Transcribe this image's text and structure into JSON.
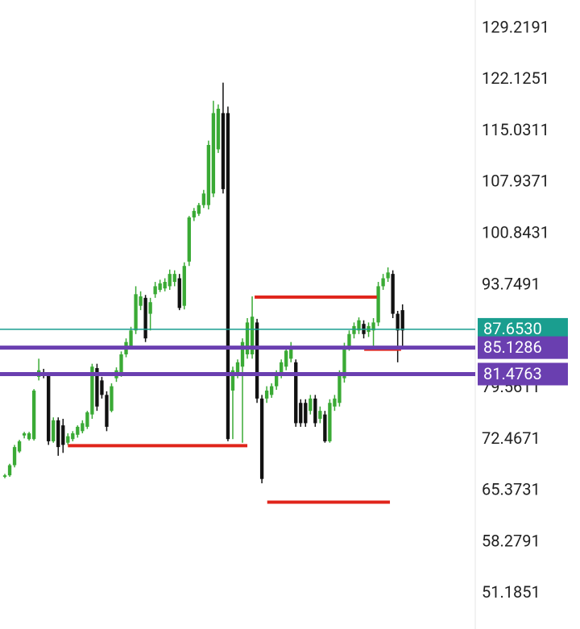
{
  "chart_data": {
    "type": "candlestick",
    "open": [
      67.3,
      67.5,
      68.9,
      70.8,
      73.0,
      72.5,
      72.5,
      81.1,
      81.7,
      81.4,
      72.2,
      75.1,
      74.4,
      72.0,
      72.5,
      73.1,
      73.6,
      74.2,
      75.9,
      82.3,
      80.6,
      78.6,
      76.4,
      80.9,
      81.4,
      84.2,
      85.3,
      87.5,
      90.9,
      92.0,
      89.8,
      92.5,
      93.1,
      93.3,
      93.6,
      94.2,
      94.7,
      90.9,
      97.0,
      103.1,
      103.6,
      104.8,
      104.8,
      106.4,
      112.5,
      117.5,
      117.5,
      79.2,
      81.4,
      82.5,
      84.2,
      84.2,
      88.6,
      78.1,
      78.1,
      78.6,
      79.8,
      81.4,
      82.5,
      83.6,
      83.1,
      77.5,
      77.5,
      76.4,
      78.1,
      75.3,
      75.9,
      72.2,
      77.0,
      77.5,
      80.9,
      85.3,
      87.0,
      87.5,
      88.4,
      87.3,
      87.5,
      88.6,
      93.6,
      94.7,
      95.3,
      89.8,
      90.3
    ],
    "high": [
      67.7,
      69.1,
      71.7,
      72.4,
      73.5,
      73.5,
      79.4,
      83.6,
      82.2,
      81.7,
      75.5,
      75.5,
      75.3,
      73.3,
      73.6,
      74.4,
      75.1,
      76.4,
      82.9,
      82.9,
      81.1,
      79.1,
      80.2,
      82.4,
      84.6,
      86.4,
      88.0,
      93.6,
      92.9,
      92.4,
      92.0,
      94.2,
      94.5,
      94.7,
      95.9,
      95.8,
      95.3,
      96.9,
      103.3,
      104.4,
      105.1,
      106.9,
      113.7,
      119.2,
      118.7,
      121.7,
      118.4,
      82.5,
      83.5,
      86.4,
      89.2,
      92.2,
      89.1,
      78.6,
      79.8,
      80.2,
      82.0,
      83.5,
      85.3,
      85.9,
      83.5,
      78.0,
      78.0,
      78.6,
      78.6,
      77.0,
      76.4,
      78.0,
      78.6,
      82.0,
      85.8,
      87.5,
      88.6,
      89.3,
      88.9,
      88.6,
      89.2,
      94.2,
      95.3,
      96.2,
      95.8,
      90.2,
      91.1
    ],
    "low": [
      67.1,
      67.3,
      68.6,
      70.6,
      72.6,
      72.3,
      72.3,
      80.6,
      80.9,
      71.7,
      72.0,
      70.2,
      70.6,
      71.7,
      72.2,
      72.7,
      73.3,
      73.9,
      75.3,
      76.4,
      78.1,
      73.6,
      76.2,
      80.4,
      81.1,
      83.8,
      84.9,
      87.0,
      90.3,
      85.9,
      87.5,
      92.0,
      92.8,
      92.9,
      93.1,
      93.6,
      90.3,
      90.4,
      96.4,
      102.6,
      103.3,
      104.4,
      104.2,
      105.9,
      112.0,
      106.4,
      72.2,
      72.5,
      80.9,
      72.0,
      83.6,
      83.6,
      77.5,
      66.4,
      77.5,
      78.2,
      79.3,
      80.9,
      82.0,
      83.1,
      74.2,
      74.2,
      74.2,
      75.9,
      74.2,
      74.7,
      72.0,
      72.0,
      76.4,
      77.0,
      80.3,
      84.7,
      86.4,
      87.0,
      86.4,
      86.6,
      85.3,
      88.1,
      93.1,
      94.2,
      89.2,
      83.1,
      85.3
    ],
    "close": [
      67.5,
      68.9,
      71.4,
      72.2,
      73.3,
      73.3,
      79.2,
      82.0,
      81.3,
      72.2,
      75.1,
      71.4,
      71.7,
      72.9,
      73.3,
      74.2,
      74.7,
      76.2,
      82.5,
      77.0,
      78.6,
      74.2,
      79.8,
      82.0,
      84.2,
      85.9,
      87.5,
      92.5,
      92.2,
      86.4,
      91.4,
      93.6,
      94.0,
      94.2,
      95.3,
      95.3,
      90.6,
      96.4,
      103.1,
      104.0,
      104.8,
      106.4,
      113.1,
      117.5,
      118.1,
      107.0,
      72.5,
      82.0,
      83.1,
      85.9,
      88.6,
      89.4,
      78.1,
      67.0,
      79.2,
      79.8,
      81.4,
      83.1,
      84.7,
      85.3,
      74.7,
      74.7,
      74.7,
      78.1,
      74.7,
      76.4,
      72.2,
      77.5,
      78.1,
      81.4,
      85.3,
      87.0,
      88.1,
      88.9,
      87.0,
      88.1,
      88.6,
      93.6,
      94.7,
      95.5,
      89.8,
      87.5,
      87.5
    ],
    "up_color": "#3aaa35",
    "down_color": "#111111",
    "xlim": [
      -1,
      97
    ],
    "ylim": [
      46.29,
      133.11
    ],
    "yticks": [
      129.2191,
      122.1251,
      115.0311,
      107.9371,
      100.8431,
      93.7491,
      79.5611,
      72.4671,
      65.3731,
      58.2791,
      51.1851
    ],
    "segments": [
      {
        "value": 71.6,
        "x": [
          13,
          50
        ],
        "color": "#e0241b"
      },
      {
        "value": 92.1,
        "x": [
          51.5,
          76.7
        ],
        "color": "#e0241b"
      },
      {
        "value": 63.8,
        "x": [
          54.1,
          79.4
        ],
        "color": "#e0241b"
      },
      {
        "value": 84.9,
        "x": [
          74.1,
          81.7
        ],
        "color": "#e0241b"
      }
    ],
    "levels": [
      {
        "value": {
          "value": 87.653,
          "label": "87.6530"
        },
        "color": "#1a9e8f",
        "width": 1.5
      },
      {
        "value": 85.1286,
        "color": "#6a3fb0",
        "width": 5
      },
      {
        "value": 81.4763,
        "color": "#6a3fb0",
        "width": 5
      }
    ]
  }
}
